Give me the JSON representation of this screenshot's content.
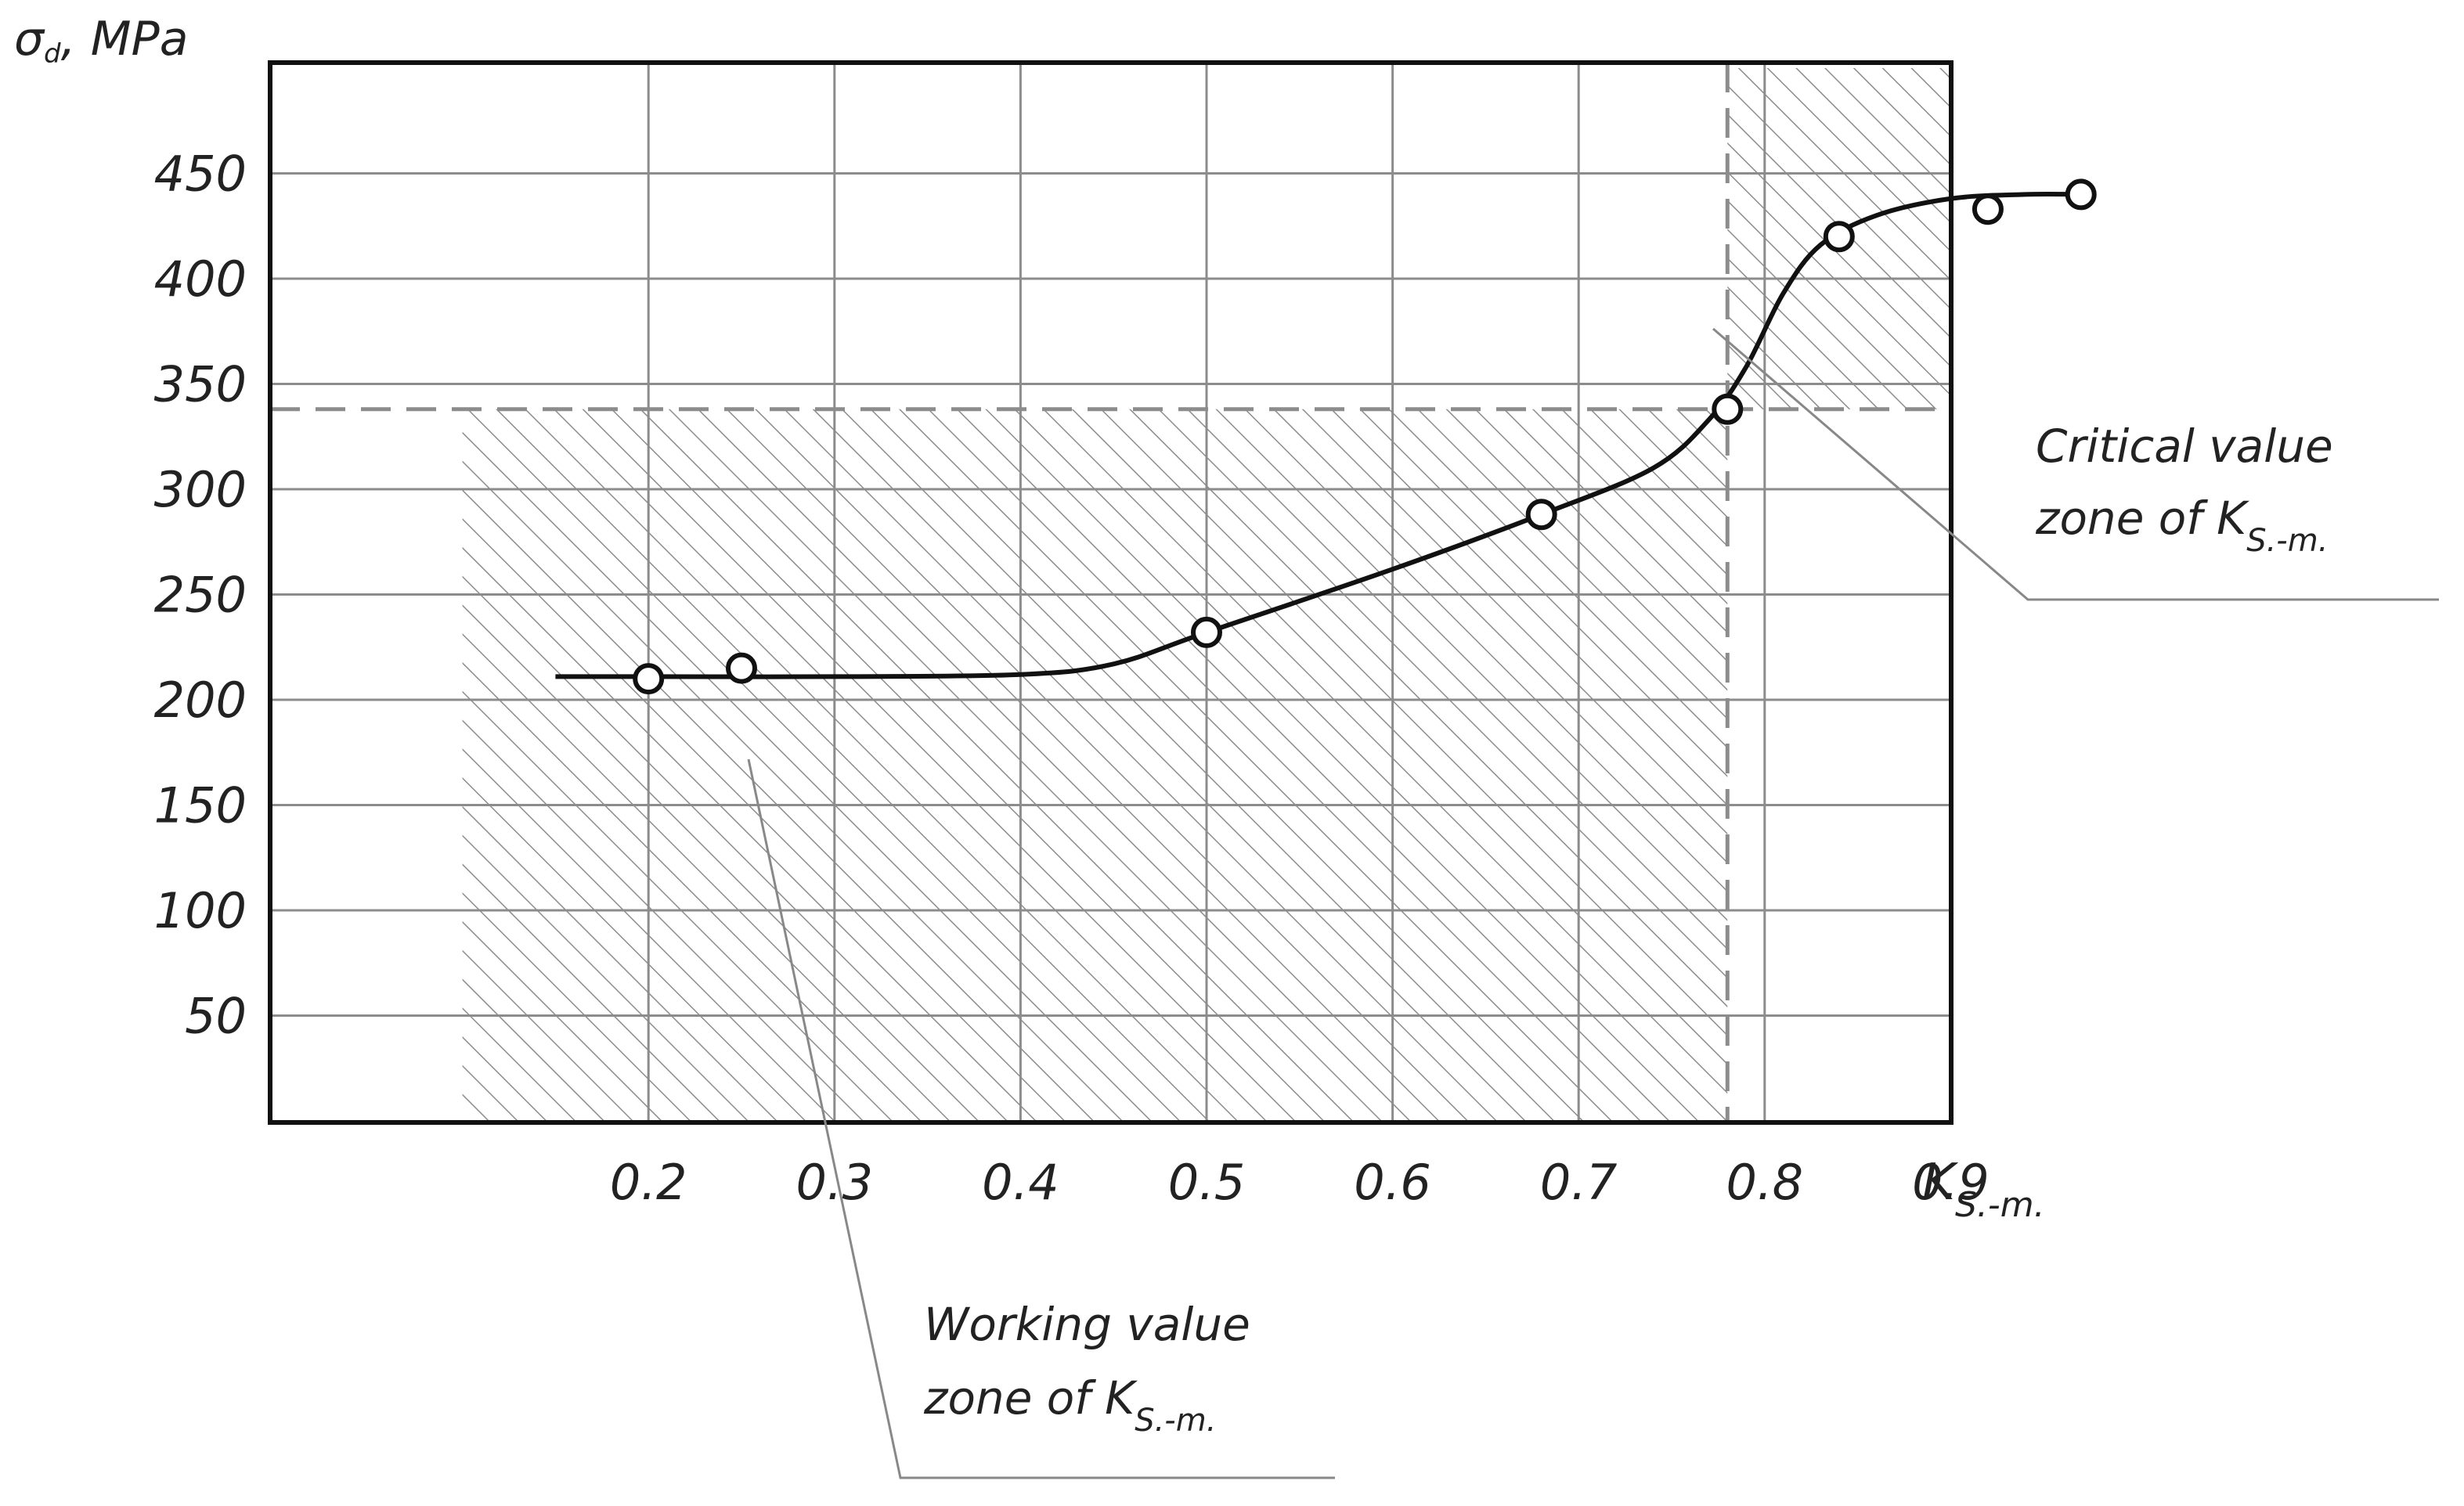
{
  "chart_data": {
    "type": "scatter",
    "title": "",
    "ylabel": {
      "symbol": "σ",
      "subscript": "d",
      "unit": ", MPa"
    },
    "xlabel": {
      "symbol": "K",
      "subscript": "S.-m."
    },
    "xlim": [
      0.1,
      1.0
    ],
    "ylim": [
      0,
      500
    ],
    "x_ticks": [
      0.2,
      0.3,
      0.4,
      0.5,
      0.6,
      0.7,
      0.8,
      0.9
    ],
    "x_tick_labels": [
      "0.2",
      "0.3",
      "0.4",
      "0.5",
      "0.6",
      "0.7",
      "0.8",
      "0.9"
    ],
    "y_ticks": [
      50,
      100,
      150,
      200,
      250,
      300,
      350,
      400,
      450
    ],
    "y_tick_labels": [
      "50",
      "100",
      "150",
      "200",
      "250",
      "300",
      "350",
      "400",
      "450"
    ],
    "grid": true,
    "series": [
      {
        "kind": "points",
        "x": [
          0.2,
          0.25,
          0.5,
          0.68,
          0.78,
          0.84,
          0.92,
          0.97
        ],
        "y": [
          210,
          215,
          232,
          288,
          338,
          420,
          433,
          440
        ]
      },
      {
        "kind": "curve",
        "x": [
          0.15,
          0.2,
          0.3,
          0.4,
          0.45,
          0.5,
          0.6,
          0.68,
          0.74,
          0.77,
          0.79,
          0.81,
          0.83,
          0.86,
          0.9,
          0.94,
          0.97
        ],
        "y": [
          211,
          211,
          211,
          212,
          217,
          232,
          262,
          288,
          310,
          333,
          358,
          393,
          416,
          430,
          438,
          440,
          440
        ]
      }
    ],
    "zones": [
      {
        "name": "working",
        "x_range": [
          0.1,
          0.78
        ],
        "y_range": [
          0,
          338
        ],
        "label_lines": [
          "Working value",
          "zone of "
        ],
        "label_symbol": "K",
        "label_subscript": "S.-m."
      },
      {
        "name": "critical",
        "x_range": [
          0.78,
          1.0
        ],
        "y_range": [
          338,
          500
        ],
        "label_lines": [
          "Critical value",
          "zone of "
        ],
        "label_symbol": "K",
        "label_subscript": "S.-m."
      }
    ],
    "colors": {
      "line": "#111111",
      "grid": "#8c8c8c",
      "hatch": "#8c8c8c",
      "frame": "#111111",
      "text": "#222222"
    }
  }
}
